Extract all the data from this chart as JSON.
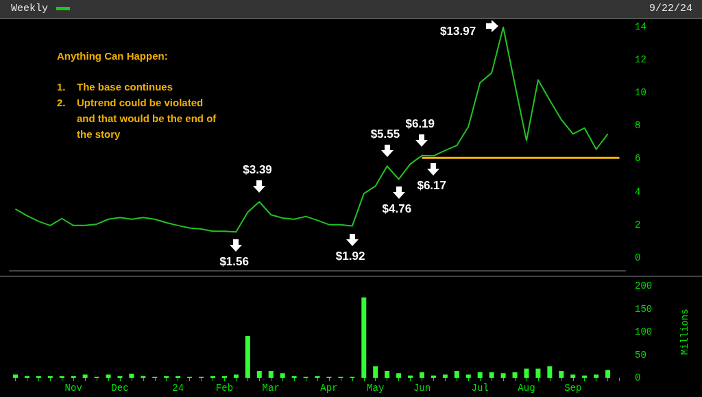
{
  "chart_data": [
    {
      "type": "line",
      "title": "Weekly",
      "subtitle": "9/22/24",
      "categories": [
        null,
        null,
        null,
        null,
        null,
        null,
        null,
        null,
        null,
        null,
        null,
        null,
        null,
        null,
        null,
        null,
        null,
        null,
        null,
        null,
        null,
        null,
        null,
        null,
        null,
        null,
        null,
        null,
        null,
        null,
        null,
        null,
        null,
        null,
        null,
        null,
        null,
        null,
        null,
        null,
        null,
        null,
        null,
        null,
        null,
        null,
        null,
        null,
        null,
        null,
        null,
        null,
        null
      ],
      "values": [
        2.95,
        2.54,
        2.2,
        1.95,
        2.37,
        1.95,
        1.95,
        2.03,
        2.33,
        2.43,
        2.33,
        2.43,
        2.33,
        2.12,
        1.95,
        1.8,
        1.74,
        1.6,
        1.6,
        1.56,
        2.75,
        3.39,
        2.6,
        2.4,
        2.33,
        2.5,
        2.26,
        2.0,
        2.0,
        1.92,
        3.88,
        4.34,
        5.55,
        4.76,
        5.68,
        6.19,
        6.17,
        6.5,
        6.8,
        7.94,
        10.6,
        11.2,
        13.97,
        10.5,
        7.1,
        10.78,
        9.55,
        8.37,
        7.5,
        7.86,
        6.57,
        7.5,
        null
      ],
      "color": "#22c322",
      "ylim": [
        -0.8,
        14.5
      ],
      "yticks": [
        0,
        2,
        4,
        6,
        8,
        10,
        12,
        14
      ],
      "tick_labels": "y",
      "marker": "none",
      "ref_lines": [
        {
          "axis": "y",
          "value": 6.05,
          "color": "#f2b705"
        }
      ],
      "annotations": [
        "Anything Can Happen:",
        "1.  The base continues",
        "2.  Uptrend could be violated and that would be the end of the story",
        {
          "text": "$1.56",
          "y": 1.56
        },
        {
          "text": "$3.39",
          "y": 3.39
        },
        {
          "text": "$1.92",
          "y": 1.92
        },
        {
          "text": "$5.55",
          "y": 5.55
        },
        {
          "text": "$4.76",
          "y": 4.76
        },
        {
          "text": "$6.19",
          "y": 6.19
        },
        {
          "text": "$6.17",
          "y": 6.17
        },
        "$13.97"
      ]
    },
    {
      "type": "bar",
      "ylabel": "Millions",
      "categories": [
        null,
        null,
        null,
        null,
        null,
        "Nov",
        null,
        null,
        null,
        "Dec",
        null,
        null,
        null,
        null,
        "24",
        null,
        null,
        null,
        "Feb",
        null,
        null,
        null,
        "Mar",
        null,
        null,
        null,
        null,
        "Apr",
        null,
        null,
        null,
        "May",
        null,
        null,
        null,
        "Jun",
        null,
        null,
        null,
        null,
        "Jul",
        null,
        null,
        null,
        "Aug",
        null,
        null,
        null,
        "Sep",
        null,
        null,
        null,
        null
      ],
      "values": [
        7,
        4,
        4,
        4,
        4,
        4,
        7,
        2,
        7,
        4,
        9,
        4,
        2,
        4,
        4,
        2,
        2,
        4,
        4,
        7,
        91,
        15,
        15,
        10,
        4,
        2,
        4,
        2,
        2,
        2,
        175,
        25,
        15,
        10,
        5,
        12,
        5,
        7,
        15,
        7,
        12,
        12,
        10,
        12,
        20,
        20,
        25,
        15,
        7,
        5,
        7,
        17,
        null
      ],
      "color": "#33ff33",
      "ylim": [
        0,
        200
      ],
      "yticks": [
        0,
        50,
        100,
        150,
        200
      ]
    }
  ]
}
